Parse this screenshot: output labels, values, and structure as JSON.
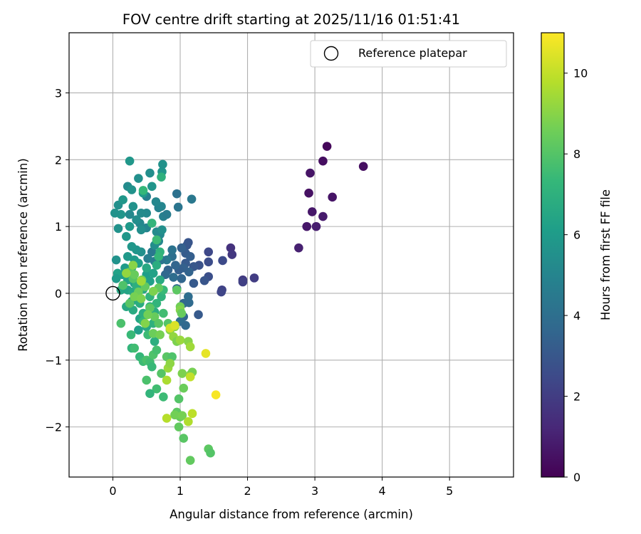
{
  "chart_data": {
    "type": "scatter",
    "title": "FOV centre drift starting at 2025/11/16 01:51:41",
    "xlabel": "Angular distance from reference (arcmin)",
    "ylabel": "Rotation from reference (arcmin)",
    "xlim": [
      -0.65,
      5.95
    ],
    "ylim": [
      -2.75,
      3.9
    ],
    "x_ticks": [
      0,
      1,
      2,
      3,
      4,
      5
    ],
    "y_ticks": [
      -2,
      -1,
      0,
      1,
      2,
      3
    ],
    "grid": true,
    "legend": {
      "position": "top-right",
      "label": "Reference platepar"
    },
    "reference_point": {
      "x": 0,
      "y": 0
    },
    "colorbar": {
      "label": "Hours from first FF file",
      "range": [
        0,
        11
      ],
      "ticks": [
        0,
        2,
        4,
        6,
        8,
        10
      ],
      "colormap": [
        "#440154",
        "#482878",
        "#3e4989",
        "#31688e",
        "#26828e",
        "#1f9e89",
        "#35b779",
        "#6ece58",
        "#b5de2b",
        "#fde725"
      ]
    },
    "points": [
      {
        "x": 3.18,
        "y": 2.2,
        "t": 0.2
      },
      {
        "x": 3.72,
        "y": 1.9,
        "t": 0.4
      },
      {
        "x": 3.12,
        "y": 1.98,
        "t": 0.4
      },
      {
        "x": 2.93,
        "y": 1.8,
        "t": 0.6
      },
      {
        "x": 2.91,
        "y": 1.5,
        "t": 0.5
      },
      {
        "x": 3.26,
        "y": 1.44,
        "t": 0.6
      },
      {
        "x": 2.96,
        "y": 1.22,
        "t": 0.7
      },
      {
        "x": 3.12,
        "y": 1.15,
        "t": 0.8
      },
      {
        "x": 2.88,
        "y": 1.0,
        "t": 0.7
      },
      {
        "x": 3.02,
        "y": 1.0,
        "t": 0.9
      },
      {
        "x": 2.76,
        "y": 0.68,
        "t": 1.0
      },
      {
        "x": 1.75,
        "y": 0.68,
        "t": 1.6
      },
      {
        "x": 1.77,
        "y": 0.58,
        "t": 1.8
      },
      {
        "x": 2.1,
        "y": 0.23,
        "t": 2.0
      },
      {
        "x": 1.93,
        "y": 0.2,
        "t": 1.9
      },
      {
        "x": 1.93,
        "y": 0.17,
        "t": 2.1
      },
      {
        "x": 1.62,
        "y": 0.05,
        "t": 2.2
      },
      {
        "x": 1.61,
        "y": 0.02,
        "t": 2.3
      },
      {
        "x": 1.63,
        "y": 0.49,
        "t": 2.5
      },
      {
        "x": 1.42,
        "y": 0.62,
        "t": 2.4
      },
      {
        "x": 1.42,
        "y": 0.47,
        "t": 2.6
      },
      {
        "x": 1.42,
        "y": 0.25,
        "t": 2.7
      },
      {
        "x": 1.36,
        "y": 0.19,
        "t": 2.9
      },
      {
        "x": 1.28,
        "y": 0.42,
        "t": 2.8
      },
      {
        "x": 1.2,
        "y": 0.4,
        "t": 3.0
      },
      {
        "x": 1.2,
        "y": 0.15,
        "t": 3.1
      },
      {
        "x": 1.27,
        "y": -0.32,
        "t": 3.1
      },
      {
        "x": 1.12,
        "y": 0.76,
        "t": 2.9
      },
      {
        "x": 1.1,
        "y": 0.72,
        "t": 3.0
      },
      {
        "x": 1.08,
        "y": 0.6,
        "t": 3.2
      },
      {
        "x": 1.15,
        "y": 0.55,
        "t": 3.3
      },
      {
        "x": 1.02,
        "y": 0.68,
        "t": 3.4
      },
      {
        "x": 1.08,
        "y": 0.45,
        "t": 3.1
      },
      {
        "x": 1.13,
        "y": 0.32,
        "t": 3.5
      },
      {
        "x": 1.05,
        "y": 0.38,
        "t": 3.4
      },
      {
        "x": 0.98,
        "y": 0.35,
        "t": 3.3
      },
      {
        "x": 0.93,
        "y": 0.42,
        "t": 3.6
      },
      {
        "x": 0.82,
        "y": 0.35,
        "t": 3.5
      },
      {
        "x": 0.78,
        "y": 0.28,
        "t": 3.7
      },
      {
        "x": 0.9,
        "y": 0.24,
        "t": 3.9
      },
      {
        "x": 1.02,
        "y": 0.22,
        "t": 3.6
      },
      {
        "x": 0.95,
        "y": 0.07,
        "t": 3.8
      },
      {
        "x": 1.12,
        "y": -0.05,
        "t": 3.9
      },
      {
        "x": 1.05,
        "y": -0.15,
        "t": 3.7
      },
      {
        "x": 1.13,
        "y": -0.14,
        "t": 3.8
      },
      {
        "x": 1.05,
        "y": -0.35,
        "t": 3.6
      },
      {
        "x": 1.0,
        "y": -0.42,
        "t": 3.9
      },
      {
        "x": 1.08,
        "y": -0.48,
        "t": 3.7
      },
      {
        "x": 0.95,
        "y": 1.49,
        "t": 4.1
      },
      {
        "x": 0.97,
        "y": 1.29,
        "t": 4.3
      },
      {
        "x": 1.17,
        "y": 1.41,
        "t": 4.4
      },
      {
        "x": 0.88,
        "y": 0.55,
        "t": 4.0
      },
      {
        "x": 0.88,
        "y": 0.65,
        "t": 4.2
      },
      {
        "x": 0.8,
        "y": 0.5,
        "t": 4.5
      },
      {
        "x": 0.72,
        "y": 0.5,
        "t": 4.3
      },
      {
        "x": 0.62,
        "y": 0.48,
        "t": 4.6
      },
      {
        "x": 0.58,
        "y": 0.62,
        "t": 4.4
      },
      {
        "x": 0.52,
        "y": 0.52,
        "t": 4.7
      },
      {
        "x": 0.75,
        "y": 1.15,
        "t": 4.8
      },
      {
        "x": 0.8,
        "y": 1.18,
        "t": 4.6
      },
      {
        "x": 0.68,
        "y": 1.28,
        "t": 4.9
      },
      {
        "x": 0.72,
        "y": 1.3,
        "t": 5.0
      },
      {
        "x": 0.64,
        "y": 1.37,
        "t": 5.1
      },
      {
        "x": 0.5,
        "y": 1.45,
        "t": 4.7
      },
      {
        "x": 0.5,
        "y": 1.2,
        "t": 5.2
      },
      {
        "x": 0.42,
        "y": 1.2,
        "t": 5.3
      },
      {
        "x": 0.4,
        "y": 1.05,
        "t": 5.1
      },
      {
        "x": 0.5,
        "y": 0.98,
        "t": 5.0
      },
      {
        "x": 0.42,
        "y": 0.95,
        "t": 5.4
      },
      {
        "x": 0.65,
        "y": 0.92,
        "t": 5.3
      },
      {
        "x": 0.7,
        "y": 0.88,
        "t": 5.2
      },
      {
        "x": 0.73,
        "y": 0.95,
        "t": 5.5
      },
      {
        "x": 0.68,
        "y": 0.78,
        "t": 5.1
      },
      {
        "x": 0.62,
        "y": 0.72,
        "t": 5.4
      },
      {
        "x": 0.3,
        "y": 1.3,
        "t": 5.6
      },
      {
        "x": 0.35,
        "y": 1.1,
        "t": 5.4
      },
      {
        "x": 0.25,
        "y": 1.18,
        "t": 5.2
      },
      {
        "x": 0.12,
        "y": 1.18,
        "t": 5.7
      },
      {
        "x": 0.03,
        "y": 1.2,
        "t": 5.6
      },
      {
        "x": 0.08,
        "y": 1.32,
        "t": 5.5
      },
      {
        "x": 0.15,
        "y": 1.4,
        "t": 5.8
      },
      {
        "x": 0.22,
        "y": 1.6,
        "t": 5.3
      },
      {
        "x": 0.28,
        "y": 1.55,
        "t": 5.6
      },
      {
        "x": 0.38,
        "y": 1.72,
        "t": 5.5
      },
      {
        "x": 0.55,
        "y": 1.8,
        "t": 5.4
      },
      {
        "x": 0.73,
        "y": 1.82,
        "t": 5.7
      },
      {
        "x": 0.74,
        "y": 1.93,
        "t": 5.6
      },
      {
        "x": 0.25,
        "y": 1.98,
        "t": 5.8
      },
      {
        "x": 0.58,
        "y": 1.6,
        "t": 5.7
      },
      {
        "x": 0.45,
        "y": 1.5,
        "t": 5.9
      },
      {
        "x": 0.25,
        "y": 1.0,
        "t": 5.9
      },
      {
        "x": 0.2,
        "y": 0.85,
        "t": 5.8
      },
      {
        "x": 0.08,
        "y": 0.97,
        "t": 5.6
      },
      {
        "x": 0.42,
        "y": 0.62,
        "t": 5.5
      },
      {
        "x": 0.35,
        "y": 0.65,
        "t": 5.7
      },
      {
        "x": 0.28,
        "y": 0.7,
        "t": 5.8
      },
      {
        "x": 0.22,
        "y": 0.55,
        "t": 5.9
      },
      {
        "x": 0.05,
        "y": 0.5,
        "t": 5.6
      },
      {
        "x": 0.32,
        "y": 0.5,
        "t": 6.0
      },
      {
        "x": 0.38,
        "y": 0.45,
        "t": 6.1
      },
      {
        "x": 0.28,
        "y": 0.38,
        "t": 6.2
      },
      {
        "x": 0.18,
        "y": 0.38,
        "t": 6.0
      },
      {
        "x": 0.14,
        "y": 0.28,
        "t": 6.1
      },
      {
        "x": 0.07,
        "y": 0.3,
        "t": 6.3
      },
      {
        "x": 0.05,
        "y": 0.22,
        "t": 6.0
      },
      {
        "x": 0.22,
        "y": 0.2,
        "t": 6.4
      },
      {
        "x": 0.32,
        "y": 0.15,
        "t": 6.2
      },
      {
        "x": 0.4,
        "y": 0.12,
        "t": 6.3
      },
      {
        "x": 0.12,
        "y": 0.05,
        "t": 6.5
      },
      {
        "x": 0.22,
        "y": 0.05,
        "t": 6.4
      },
      {
        "x": 0.3,
        "y": 0.02,
        "t": 6.6
      },
      {
        "x": 0.45,
        "y": 0.06,
        "t": 6.5
      },
      {
        "x": 0.5,
        "y": 0.28,
        "t": 6.1
      },
      {
        "x": 0.6,
        "y": 0.3,
        "t": 6.3
      },
      {
        "x": 0.55,
        "y": 0.18,
        "t": 6.2
      },
      {
        "x": 0.7,
        "y": 0.2,
        "t": 6.7
      },
      {
        "x": 0.5,
        "y": 0.38,
        "t": 6.6
      },
      {
        "x": 0.65,
        "y": 0.42,
        "t": 6.8
      },
      {
        "x": 0.58,
        "y": 1.05,
        "t": 7.2
      },
      {
        "x": 0.72,
        "y": 1.74,
        "t": 7.0
      },
      {
        "x": 0.45,
        "y": 1.54,
        "t": 7.3
      },
      {
        "x": 0.35,
        "y": 0.12,
        "t": 6.9
      },
      {
        "x": 0.2,
        "y": -0.2,
        "t": 6.6
      },
      {
        "x": 0.28,
        "y": -0.12,
        "t": 6.5
      },
      {
        "x": 0.3,
        "y": -0.25,
        "t": 6.7
      },
      {
        "x": 0.4,
        "y": -0.15,
        "t": 6.8
      },
      {
        "x": 0.4,
        "y": -0.38,
        "t": 6.4
      },
      {
        "x": 0.45,
        "y": -0.3,
        "t": 6.9
      },
      {
        "x": 0.55,
        "y": -0.2,
        "t": 7.0
      },
      {
        "x": 0.55,
        "y": -0.05,
        "t": 7.1
      },
      {
        "x": 0.62,
        "y": -0.28,
        "t": 6.8
      },
      {
        "x": 0.65,
        "y": -0.15,
        "t": 7.2
      },
      {
        "x": 0.72,
        "y": -0.05,
        "t": 7.1
      },
      {
        "x": 0.75,
        "y": 0.05,
        "t": 7.4
      },
      {
        "x": 0.5,
        "y": -0.5,
        "t": 6.6
      },
      {
        "x": 0.6,
        "y": -0.45,
        "t": 7.0
      },
      {
        "x": 0.52,
        "y": -0.62,
        "t": 7.5
      },
      {
        "x": 0.62,
        "y": -0.72,
        "t": 6.9
      },
      {
        "x": 0.38,
        "y": -0.55,
        "t": 6.2
      },
      {
        "x": 0.45,
        "y": -0.42,
        "t": 7.3
      },
      {
        "x": 0.7,
        "y": 0.62,
        "t": 7.1
      },
      {
        "x": 0.68,
        "y": 0.55,
        "t": 7.3
      },
      {
        "x": 0.65,
        "y": 0.8,
        "t": 7.5
      },
      {
        "x": 0.27,
        "y": -0.62,
        "t": 7.4
      },
      {
        "x": 0.28,
        "y": -0.82,
        "t": 7.2
      },
      {
        "x": 0.32,
        "y": -0.82,
        "t": 7.6
      },
      {
        "x": 0.4,
        "y": -0.95,
        "t": 7.3
      },
      {
        "x": 0.45,
        "y": -1.02,
        "t": 7.5
      },
      {
        "x": 0.5,
        "y": -1.0,
        "t": 7.8
      },
      {
        "x": 0.55,
        "y": -1.03,
        "t": 7.6
      },
      {
        "x": 0.6,
        "y": -0.92,
        "t": 7.9
      },
      {
        "x": 0.65,
        "y": -0.85,
        "t": 7.7
      },
      {
        "x": 0.58,
        "y": -1.1,
        "t": 7.4
      },
      {
        "x": 0.5,
        "y": -1.3,
        "t": 7.8
      },
      {
        "x": 0.65,
        "y": -1.43,
        "t": 7.6
      },
      {
        "x": 0.55,
        "y": -1.5,
        "t": 7.2
      },
      {
        "x": 0.75,
        "y": -1.55,
        "t": 7.5
      },
      {
        "x": 0.72,
        "y": -1.2,
        "t": 8.0
      },
      {
        "x": 0.8,
        "y": -0.95,
        "t": 8.1
      },
      {
        "x": 0.88,
        "y": -0.95,
        "t": 7.9
      },
      {
        "x": 0.85,
        "y": -0.5,
        "t": 7.8
      },
      {
        "x": 0.75,
        "y": -0.3,
        "t": 7.6
      },
      {
        "x": 0.82,
        "y": -0.45,
        "t": 8.0
      },
      {
        "x": 0.12,
        "y": -0.45,
        "t": 7.8
      },
      {
        "x": 0.3,
        "y": 0.22,
        "t": 8.0
      },
      {
        "x": 0.15,
        "y": 0.12,
        "t": 7.9
      },
      {
        "x": 0.25,
        "y": 0.32,
        "t": 8.2
      },
      {
        "x": 0.32,
        "y": 0.28,
        "t": 8.4
      },
      {
        "x": 0.43,
        "y": 0.2,
        "t": 8.6
      },
      {
        "x": 0.48,
        "y": 0.1,
        "t": 8.3
      },
      {
        "x": 0.38,
        "y": 0.02,
        "t": 8.5
      },
      {
        "x": 0.25,
        "y": -0.15,
        "t": 8.1
      },
      {
        "x": 0.32,
        "y": -0.05,
        "t": 8.7
      },
      {
        "x": 0.42,
        "y": -0.08,
        "t": 8.8
      },
      {
        "x": 0.55,
        "y": -0.22,
        "t": 8.2
      },
      {
        "x": 0.62,
        "y": -0.35,
        "t": 8.4
      },
      {
        "x": 0.52,
        "y": -0.32,
        "t": 8.6
      },
      {
        "x": 0.48,
        "y": -0.45,
        "t": 8.9
      },
      {
        "x": 0.68,
        "y": -0.45,
        "t": 8.1
      },
      {
        "x": 0.6,
        "y": -0.6,
        "t": 8.5
      },
      {
        "x": 0.7,
        "y": -0.62,
        "t": 8.7
      },
      {
        "x": 0.68,
        "y": 0.08,
        "t": 8.3
      },
      {
        "x": 0.6,
        "y": 0.03,
        "t": 8.8
      },
      {
        "x": 0.95,
        "y": 0.05,
        "t": 8.2
      },
      {
        "x": 1.0,
        "y": -0.2,
        "t": 8.6
      },
      {
        "x": 1.0,
        "y": -0.25,
        "t": 8.9
      },
      {
        "x": 1.02,
        "y": -0.3,
        "t": 8.4
      },
      {
        "x": 0.85,
        "y": -0.55,
        "t": 9.0
      },
      {
        "x": 0.92,
        "y": -0.5,
        "t": 9.1
      },
      {
        "x": 0.9,
        "y": -0.65,
        "t": 9.2
      },
      {
        "x": 0.95,
        "y": -0.72,
        "t": 8.8
      },
      {
        "x": 1.0,
        "y": -0.7,
        "t": 9.3
      },
      {
        "x": 1.12,
        "y": -0.72,
        "t": 9.0
      },
      {
        "x": 1.15,
        "y": -0.8,
        "t": 9.4
      },
      {
        "x": 0.82,
        "y": -1.12,
        "t": 9.3
      },
      {
        "x": 0.85,
        "y": -1.05,
        "t": 9.1
      },
      {
        "x": 0.8,
        "y": -1.3,
        "t": 9.6
      },
      {
        "x": 0.95,
        "y": -1.78,
        "t": 8.2
      },
      {
        "x": 1.0,
        "y": -1.85,
        "t": 8.4
      },
      {
        "x": 0.92,
        "y": -1.82,
        "t": 8.6
      },
      {
        "x": 0.98,
        "y": -2.0,
        "t": 8.3
      },
      {
        "x": 1.05,
        "y": -2.17,
        "t": 8.1
      },
      {
        "x": 1.03,
        "y": -1.83,
        "t": 8.7
      },
      {
        "x": 0.98,
        "y": -1.58,
        "t": 8.0
      },
      {
        "x": 1.05,
        "y": -1.42,
        "t": 8.5
      },
      {
        "x": 1.03,
        "y": -1.2,
        "t": 8.8
      },
      {
        "x": 1.15,
        "y": -1.22,
        "t": 9.0
      },
      {
        "x": 1.18,
        "y": -1.18,
        "t": 8.7
      },
      {
        "x": 1.42,
        "y": -2.33,
        "t": 8.2
      },
      {
        "x": 1.45,
        "y": -2.39,
        "t": 8.0
      },
      {
        "x": 1.15,
        "y": -2.5,
        "t": 8.3
      },
      {
        "x": 0.8,
        "y": -1.87,
        "t": 9.8
      },
      {
        "x": 1.12,
        "y": -1.92,
        "t": 9.7
      },
      {
        "x": 1.18,
        "y": -1.8,
        "t": 9.9
      },
      {
        "x": 1.15,
        "y": -1.25,
        "t": 10.0
      },
      {
        "x": 1.38,
        "y": -0.9,
        "t": 10.6
      },
      {
        "x": 1.53,
        "y": -1.52,
        "t": 10.9
      },
      {
        "x": 0.85,
        "y": -0.52,
        "t": 10.2
      },
      {
        "x": 0.92,
        "y": -0.48,
        "t": 10.4
      },
      {
        "x": 0.3,
        "y": 0.42,
        "t": 9.0
      },
      {
        "x": 0.2,
        "y": 0.3,
        "t": 9.2
      },
      {
        "x": 0.42,
        "y": 0.18,
        "t": 9.4
      }
    ]
  }
}
